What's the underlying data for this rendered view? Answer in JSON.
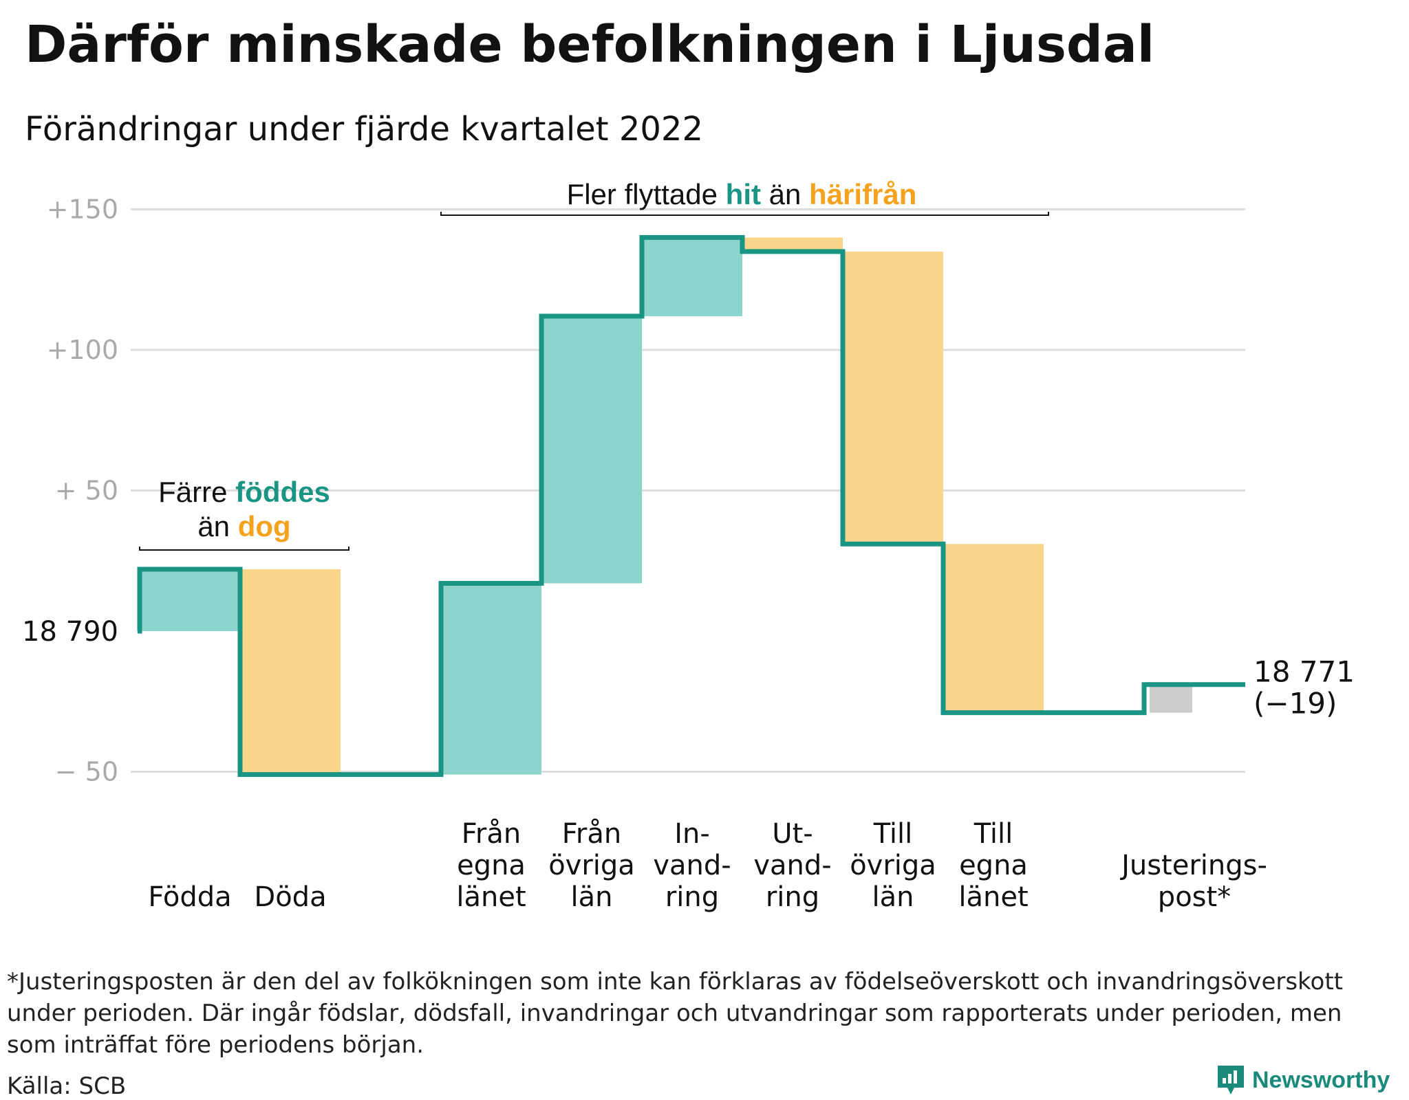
{
  "title": "Därför minskade befolkningen i Ljusdal",
  "subtitle": "Förändringar under fjärde kvartalet 2022",
  "colors": {
    "line": "#1a9583",
    "increase": "#8dd5cc",
    "decrease": "#fad58c",
    "adjustment": "#cccccc",
    "grid": "#dddddd",
    "tick": "#aaaaaa",
    "hit": "#1a9583",
    "harifran": "#f5a21f"
  },
  "chart_data": {
    "type": "waterfall",
    "baseline": 18790,
    "start_label": "18 790",
    "end_label": "18 771",
    "end_change": "(−19)",
    "y_ticks": [
      "+150",
      "+100",
      "+ 50",
      "− 50"
    ],
    "y_tick_values": [
      150,
      100,
      50,
      -50
    ],
    "ylim": [
      -60,
      160
    ],
    "steps": [
      {
        "label": [
          "Födda"
        ],
        "from": 0,
        "to": 22,
        "kind": "increase"
      },
      {
        "label": [
          "Döda"
        ],
        "from": 22,
        "to": -51,
        "kind": "decrease"
      },
      {
        "label": [
          "Från",
          "egna",
          "länet"
        ],
        "from": -51,
        "to": 17,
        "kind": "increase"
      },
      {
        "label": [
          "Från",
          "övriga",
          "län"
        ],
        "from": 17,
        "to": 112,
        "kind": "increase"
      },
      {
        "label": [
          "In-",
          "vand-",
          "ring"
        ],
        "from": 112,
        "to": 140,
        "kind": "increase"
      },
      {
        "label": [
          "Ut-",
          "vand-",
          "ring"
        ],
        "from": 140,
        "to": 135,
        "kind": "decrease"
      },
      {
        "label": [
          "Till",
          "övriga",
          "län"
        ],
        "from": 135,
        "to": 31,
        "kind": "decrease"
      },
      {
        "label": [
          "Till",
          "egna",
          "länet"
        ],
        "from": 31,
        "to": -29,
        "kind": "decrease"
      },
      {
        "label": [
          "Justerings-",
          "post*"
        ],
        "from": -29,
        "to": -19,
        "kind": "adjustment"
      }
    ],
    "annotations": [
      {
        "parts": [
          {
            "text": "Färre ",
            "style": "plain"
          },
          {
            "text": "föddes",
            "style": "hit"
          }
        ],
        "parts2": [
          {
            "text": "än ",
            "style": "plain"
          },
          {
            "text": "dog",
            "style": "harifran"
          }
        ]
      },
      {
        "parts": [
          {
            "text": "Fler flyttade ",
            "style": "plain"
          },
          {
            "text": "hit",
            "style": "hit"
          },
          {
            "text": " än ",
            "style": "plain"
          },
          {
            "text": "härifrån",
            "style": "harifran"
          }
        ]
      }
    ]
  },
  "footnote": "*Justeringsposten är den del av folkökningen som inte kan förklaras av födelseöverskott och invandringsöverskott\nunder perioden. Där ingår födslar, dödsfall, invandringar och utvandringar som rapporterats under perioden, men\nsom inträffat före periodens början.",
  "source": "Källa: SCB",
  "brand": "Newsworthy",
  "brand_icon": "newsworthy-logo-icon"
}
